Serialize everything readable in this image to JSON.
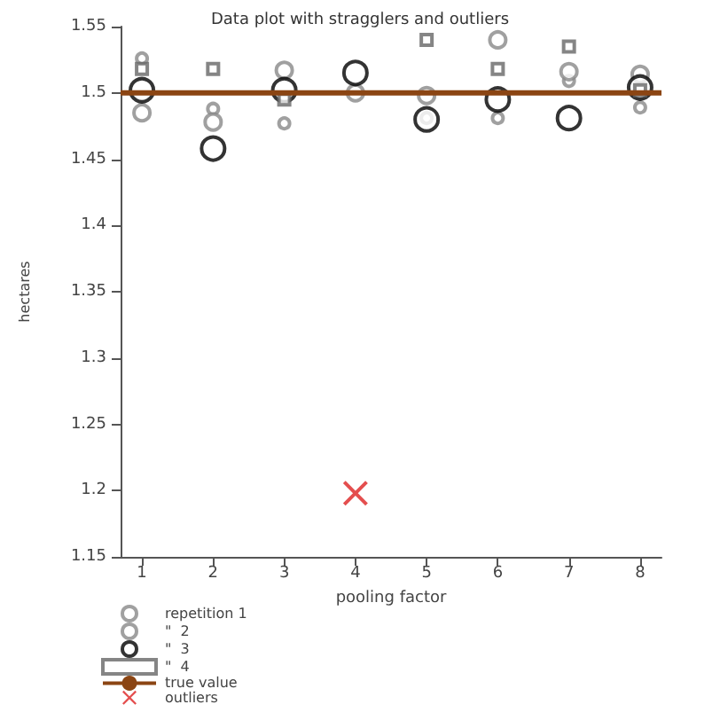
{
  "chart_data": {
    "type": "scatter",
    "title": "Data plot with stragglers and outliers",
    "xlabel": "pooling factor",
    "ylabel": "hectares",
    "x": [
      1,
      2,
      3,
      4,
      5,
      6,
      7,
      8
    ],
    "series": [
      {
        "name": "repetition 1",
        "color": "#888888",
        "marker": "circle",
        "values": [
          1.526,
          1.488,
          1.477,
          null,
          1.481,
          1.481,
          1.509,
          1.489
        ]
      },
      {
        "name": "\"  2",
        "color": "#888888",
        "marker": "circle",
        "values": [
          1.485,
          1.478,
          1.517,
          1.5,
          1.498,
          1.54,
          1.516,
          1.514
        ]
      },
      {
        "name": "\"  3",
        "color": "#000000",
        "marker": "circle",
        "values": [
          1.502,
          1.458,
          1.502,
          1.515,
          1.48,
          1.495,
          1.481,
          1.504
        ]
      },
      {
        "name": "\"  4",
        "color": "#666666",
        "marker": "square",
        "values": [
          1.518,
          1.518,
          1.495,
          null,
          1.54,
          1.518,
          1.535,
          1.502
        ]
      },
      {
        "name": "true value",
        "type": "line",
        "color": "#8b4513",
        "marker": "none",
        "x": [
          0.7,
          8.3
        ],
        "values": [
          1.5,
          1.5
        ]
      },
      {
        "name": "outliers",
        "color": "#dd2222",
        "marker": "cross",
        "x": [
          4
        ],
        "values": [
          1.198
        ]
      }
    ],
    "xlim": [
      0.7,
      8.3
    ],
    "xticks": [
      1,
      2,
      3,
      4,
      5,
      6,
      7,
      8
    ],
    "ylim": [
      1.15,
      1.55
    ],
    "yticks": [
      1.15,
      1.2,
      1.25,
      1.3,
      1.35,
      1.4,
      1.45,
      1.5,
      1.55
    ],
    "grid": false,
    "legend": "bottom left"
  }
}
